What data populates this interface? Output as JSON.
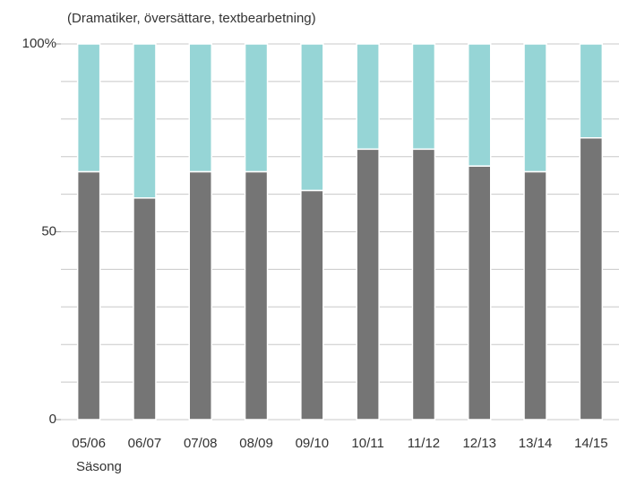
{
  "chart_data": {
    "type": "stacked_bar",
    "subtitle": "(Dramatiker, översättare, textbearbetning)",
    "x_label": "Säsong",
    "categories": [
      "05/06",
      "06/07",
      "07/08",
      "08/09",
      "09/10",
      "10/11",
      "11/12",
      "12/13",
      "13/14",
      "14/15"
    ],
    "series": [
      {
        "color": "#757575",
        "values": [
          66,
          59,
          66,
          66,
          61,
          72,
          72,
          67.5,
          66,
          75
        ]
      },
      {
        "color": "#96d5d6",
        "values": [
          34,
          41,
          34,
          34,
          39,
          28,
          28,
          32.5,
          34,
          25
        ]
      }
    ],
    "ylim": [
      0,
      100
    ],
    "yticks": [
      0,
      50,
      {
        "value": 100,
        "label": "100%"
      }
    ],
    "minor_yticks": [
      10,
      20,
      30,
      40,
      60,
      70,
      80,
      90
    ],
    "grid": true
  }
}
